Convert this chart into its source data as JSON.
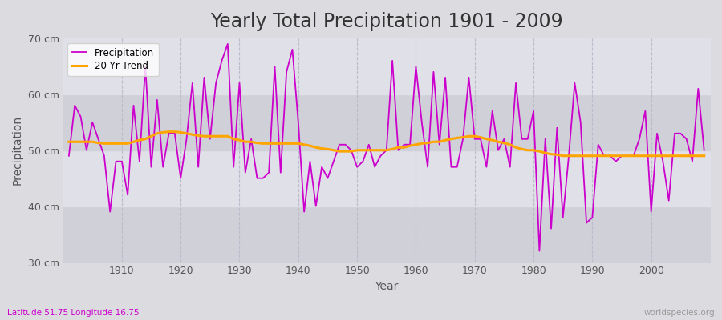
{
  "title": "Yearly Total Precipitation 1901 - 2009",
  "xlabel": "Year",
  "ylabel": "Precipitation",
  "subtitle_left": "Latitude 51.75 Longitude 16.75",
  "subtitle_right": "worldspecies.org",
  "years": [
    1901,
    1902,
    1903,
    1904,
    1905,
    1906,
    1907,
    1908,
    1909,
    1910,
    1911,
    1912,
    1913,
    1914,
    1915,
    1916,
    1917,
    1918,
    1919,
    1920,
    1921,
    1922,
    1923,
    1924,
    1925,
    1926,
    1927,
    1928,
    1929,
    1930,
    1931,
    1932,
    1933,
    1934,
    1935,
    1936,
    1937,
    1938,
    1939,
    1940,
    1941,
    1942,
    1943,
    1944,
    1945,
    1946,
    1947,
    1948,
    1949,
    1950,
    1951,
    1952,
    1953,
    1954,
    1955,
    1956,
    1957,
    1958,
    1959,
    1960,
    1961,
    1962,
    1963,
    1964,
    1965,
    1966,
    1967,
    1968,
    1969,
    1970,
    1971,
    1972,
    1973,
    1974,
    1975,
    1976,
    1977,
    1978,
    1979,
    1980,
    1981,
    1982,
    1983,
    1984,
    1985,
    1986,
    1987,
    1988,
    1989,
    1990,
    1991,
    1992,
    1993,
    1994,
    1995,
    1996,
    1997,
    1998,
    1999,
    2000,
    2001,
    2002,
    2003,
    2004,
    2005,
    2006,
    2007,
    2008,
    2009
  ],
  "precipitation": [
    49,
    58,
    56,
    50,
    55,
    52,
    49,
    39,
    48,
    48,
    42,
    58,
    48,
    65,
    47,
    59,
    47,
    53,
    53,
    45,
    52,
    62,
    47,
    63,
    52,
    62,
    66,
    69,
    47,
    62,
    46,
    52,
    45,
    45,
    46,
    65,
    46,
    64,
    68,
    55,
    39,
    48,
    40,
    47,
    45,
    48,
    51,
    51,
    50,
    47,
    48,
    51,
    47,
    49,
    50,
    66,
    50,
    51,
    51,
    65,
    55,
    47,
    64,
    51,
    63,
    47,
    47,
    52,
    63,
    52,
    52,
    47,
    57,
    50,
    52,
    47,
    62,
    52,
    52,
    57,
    32,
    52,
    36,
    54,
    38,
    49,
    62,
    55,
    37,
    38,
    51,
    49,
    49,
    48,
    49,
    49,
    49,
    52,
    57,
    39,
    53,
    48,
    41,
    53,
    53,
    52,
    48,
    61,
    50
  ],
  "trend": [
    51.5,
    51.5,
    51.5,
    51.5,
    51.5,
    51.3,
    51.2,
    51.2,
    51.2,
    51.2,
    51.2,
    51.5,
    51.8,
    52.0,
    52.5,
    53.0,
    53.2,
    53.3,
    53.3,
    53.2,
    53.0,
    52.8,
    52.6,
    52.5,
    52.5,
    52.5,
    52.5,
    52.5,
    52.0,
    51.8,
    51.5,
    51.5,
    51.3,
    51.2,
    51.2,
    51.2,
    51.2,
    51.2,
    51.2,
    51.2,
    51.0,
    50.8,
    50.5,
    50.3,
    50.2,
    50.0,
    49.8,
    49.8,
    49.8,
    50.0,
    50.0,
    50.0,
    50.0,
    50.0,
    50.0,
    50.2,
    50.5,
    50.5,
    50.8,
    51.0,
    51.2,
    51.3,
    51.5,
    51.5,
    51.8,
    52.0,
    52.2,
    52.3,
    52.5,
    52.5,
    52.3,
    52.0,
    51.8,
    51.5,
    51.3,
    51.0,
    50.5,
    50.2,
    50.0,
    50.0,
    49.8,
    49.5,
    49.3,
    49.2,
    49.0,
    49.0,
    49.0,
    49.0,
    49.0,
    49.0,
    49.0,
    49.0,
    49.0,
    49.0,
    49.0,
    49.0,
    49.0,
    49.0,
    49.0,
    49.0,
    49.0,
    49.0,
    49.0,
    49.0,
    49.0,
    49.0,
    49.0,
    49.0,
    49.0
  ],
  "precip_color": "#cc00cc",
  "trend_color": "#ffa500",
  "fig_bg_color": "#dcdce0",
  "plot_bg_color": "#dcdce0",
  "band_colors": [
    "#d0d0d8",
    "#e0e0e8"
  ],
  "grid_vline_color": "#bbbbcc",
  "ylim": [
    30,
    70
  ],
  "yticks": [
    30,
    40,
    50,
    60,
    70
  ],
  "ytick_labels": [
    "30 cm",
    "40 cm",
    "50 cm",
    "60 cm",
    "70 cm"
  ],
  "xticks": [
    1910,
    1920,
    1930,
    1940,
    1950,
    1960,
    1970,
    1980,
    1990,
    2000
  ],
  "title_fontsize": 17,
  "label_fontsize": 10,
  "tick_fontsize": 9,
  "subtitle_left_color": "#cc00cc",
  "subtitle_right_color": "#999999"
}
